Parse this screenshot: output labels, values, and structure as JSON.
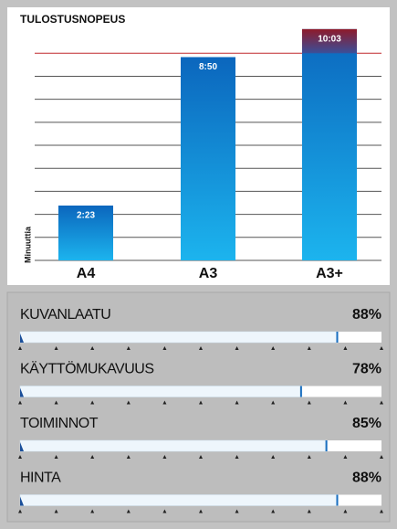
{
  "chart_data": {
    "type": "bar",
    "title": "TULOSTUSNOPEUS",
    "y_label": "Minuuttia",
    "categories": [
      "A4",
      "A3",
      "A3+"
    ],
    "values": [
      2.383,
      8.833,
      10.05
    ],
    "value_labels": [
      "2:23",
      "8:50",
      "10:03"
    ],
    "color": "#1a9fe0",
    "top_grid_color": "#c0282d",
    "over_color": "#9a1f2e",
    "ylim": [
      0,
      10.6
    ],
    "yticks": [
      0,
      1,
      2,
      3,
      4,
      5,
      6,
      7,
      8,
      9
    ],
    "grid": true
  },
  "ratings": {
    "ticks": [
      0,
      10,
      20,
      30,
      40,
      50,
      60,
      70,
      80,
      90,
      100
    ],
    "items": [
      {
        "label": "KUVANLAATU",
        "value": 88,
        "value_label": "88%"
      },
      {
        "label": "KÄYTTÖMUKAVUUS",
        "value": 78,
        "value_label": "78%"
      },
      {
        "label": "TOIMINNOT",
        "value": 85,
        "value_label": "85%"
      },
      {
        "label": "HINTA",
        "value": 88,
        "value_label": "88%"
      }
    ]
  }
}
